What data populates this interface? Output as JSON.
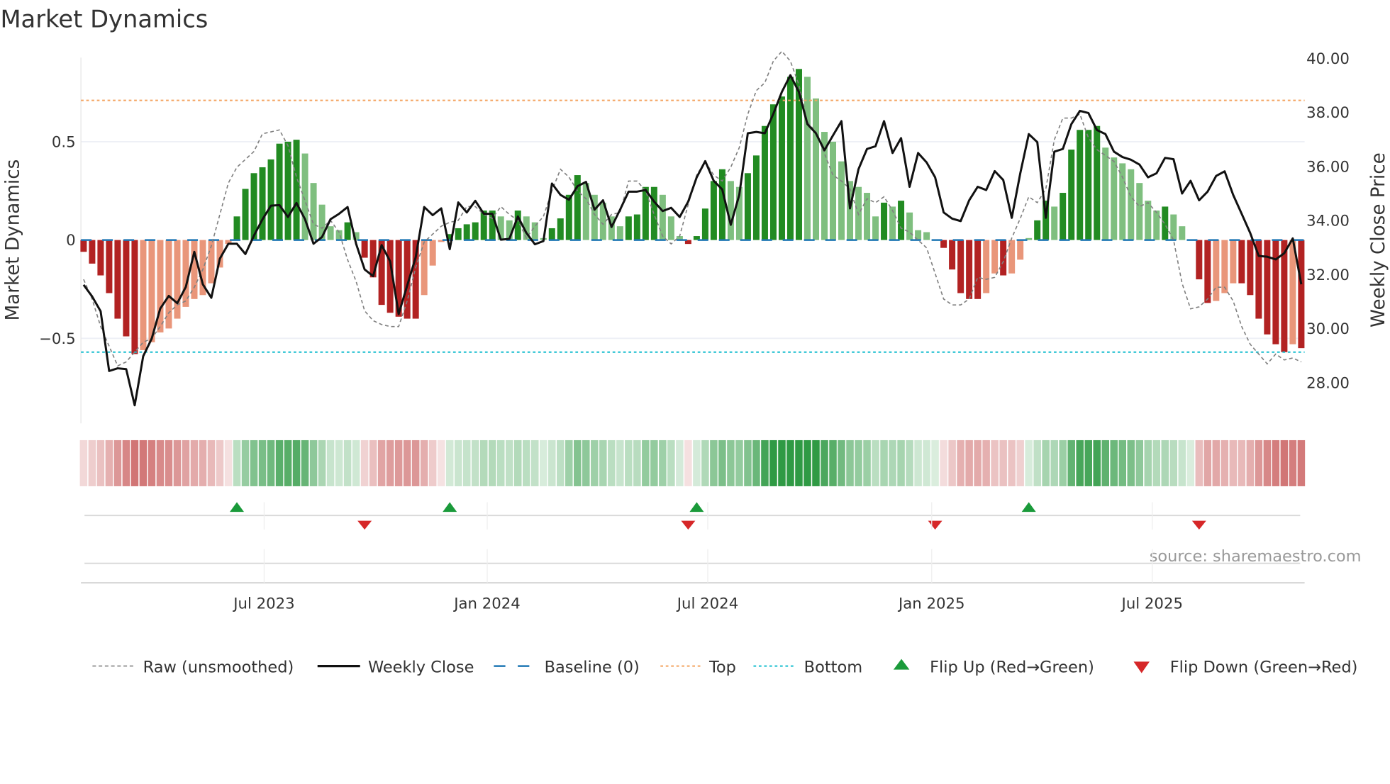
{
  "title": "Market Dynamics",
  "source": "source: sharemaestro.com",
  "colors": {
    "strong_red": "#b22222",
    "weak_red": "#e9967a",
    "strong_green": "#228b22",
    "weak_green": "#7fbf7f",
    "close": "#111111",
    "raw": "#808080",
    "baseline": "#1f77b4",
    "top": "#f4a460",
    "bottom": "#17becf",
    "flip_up": "#1a9a3a",
    "flip_down": "#d62728"
  },
  "chart_data": {
    "type": "bar",
    "title": "Market Dynamics",
    "ylabel": "Market Dynamics",
    "y2label": "Weekly Close Price",
    "ylim": [
      -0.95,
      0.93
    ],
    "y2lim": [
      26.5,
      40.2
    ],
    "yticks": [
      {
        "v": 0.5,
        "label": "0.5"
      },
      {
        "v": 0,
        "label": "0"
      },
      {
        "v": -0.5,
        "label": "−0.5"
      }
    ],
    "y2ticks": [
      {
        "v": 40,
        "label": "40.00"
      },
      {
        "v": 38,
        "label": "38.00"
      },
      {
        "v": 36,
        "label": "36.00"
      },
      {
        "v": 34,
        "label": "34.00"
      },
      {
        "v": 32,
        "label": "32.00"
      },
      {
        "v": 30,
        "label": "30.00"
      },
      {
        "v": 28,
        "label": "28.00"
      }
    ],
    "xticks": [
      {
        "week": 21.2,
        "label": "Jul 2023"
      },
      {
        "week": 47.4,
        "label": "Jan 2024"
      },
      {
        "week": 73.3,
        "label": "Jul 2024"
      },
      {
        "week": 99.6,
        "label": "Jan 2025"
      },
      {
        "week": 125.5,
        "label": "Jul 2025"
      }
    ],
    "top_level": 0.71,
    "bottom_level": -0.57,
    "baseline": 0,
    "momentum": [
      -0.06,
      -0.12,
      -0.18,
      -0.27,
      -0.4,
      -0.49,
      -0.58,
      -0.56,
      -0.52,
      -0.47,
      -0.45,
      -0.4,
      -0.34,
      -0.3,
      -0.28,
      -0.22,
      -0.14,
      -0.02,
      0.12,
      0.26,
      0.34,
      0.37,
      0.41,
      0.49,
      0.5,
      0.51,
      0.44,
      0.29,
      0.18,
      0.07,
      0.05,
      0.09,
      0.04,
      -0.09,
      -0.19,
      -0.33,
      -0.37,
      -0.39,
      -0.4,
      -0.4,
      -0.28,
      -0.13,
      -0.01,
      0.03,
      0.06,
      0.08,
      0.09,
      0.15,
      0.15,
      0.12,
      0.1,
      0.15,
      0.12,
      0.09,
      0.01,
      0.06,
      0.11,
      0.23,
      0.33,
      0.29,
      0.23,
      0.19,
      0.12,
      0.07,
      0.12,
      0.13,
      0.27,
      0.27,
      0.23,
      0.12,
      0.02,
      -0.02,
      0.02,
      0.16,
      0.3,
      0.36,
      0.3,
      0.27,
      0.34,
      0.43,
      0.58,
      0.69,
      0.73,
      0.83,
      0.87,
      0.83,
      0.72,
      0.55,
      0.5,
      0.4,
      0.3,
      0.27,
      0.24,
      0.12,
      0.19,
      0.17,
      0.2,
      0.14,
      0.05,
      0.04,
      0.0,
      -0.04,
      -0.15,
      -0.27,
      -0.3,
      -0.3,
      -0.27,
      -0.17,
      -0.18,
      -0.17,
      -0.1,
      0.01,
      0.1,
      0.2,
      0.17,
      0.24,
      0.46,
      0.56,
      0.56,
      0.58,
      0.47,
      0.42,
      0.39,
      0.36,
      0.29,
      0.2,
      0.15,
      0.17,
      0.13,
      0.07,
      0.0,
      -0.2,
      -0.32,
      -0.31,
      -0.27,
      -0.22,
      -0.22,
      -0.28,
      -0.4,
      -0.48,
      -0.53,
      -0.57,
      -0.53,
      -0.55
    ],
    "raw": [
      -0.2,
      -0.3,
      -0.44,
      -0.54,
      -0.64,
      -0.62,
      -0.57,
      -0.52,
      -0.5,
      -0.44,
      -0.37,
      -0.33,
      -0.31,
      -0.24,
      -0.15,
      -0.03,
      0.13,
      0.29,
      0.37,
      0.41,
      0.45,
      0.54,
      0.55,
      0.56,
      0.48,
      0.32,
      0.2,
      0.08,
      0.06,
      0.1,
      0.04,
      -0.1,
      -0.21,
      -0.36,
      -0.41,
      -0.43,
      -0.44,
      -0.44,
      -0.31,
      -0.14,
      -0.01,
      0.03,
      0.07,
      0.09,
      0.1,
      0.17,
      0.17,
      0.13,
      0.11,
      0.17,
      0.13,
      0.1,
      0.01,
      0.07,
      0.12,
      0.25,
      0.36,
      0.32,
      0.25,
      0.21,
      0.13,
      0.08,
      0.13,
      0.14,
      0.3,
      0.3,
      0.25,
      0.13,
      0.02,
      -0.02,
      0.02,
      0.18,
      0.33,
      0.4,
      0.33,
      0.3,
      0.37,
      0.47,
      0.64,
      0.76,
      0.8,
      0.91,
      0.96,
      0.91,
      0.79,
      0.6,
      0.55,
      0.44,
      0.33,
      0.3,
      0.26,
      0.13,
      0.21,
      0.19,
      0.22,
      0.15,
      0.06,
      0.04,
      0.0,
      -0.04,
      -0.17,
      -0.3,
      -0.33,
      -0.33,
      -0.3,
      -0.19,
      -0.2,
      -0.19,
      -0.11,
      0.01,
      0.11,
      0.22,
      0.19,
      0.26,
      0.51,
      0.62,
      0.62,
      0.64,
      0.52,
      0.46,
      0.43,
      0.4,
      0.32,
      0.22,
      0.17,
      0.19,
      0.14,
      0.08,
      0.0,
      -0.22,
      -0.35,
      -0.34,
      -0.3,
      -0.24,
      -0.24,
      -0.31,
      -0.44,
      -0.53,
      -0.58,
      -0.63,
      -0.58,
      -0.61,
      -0.6,
      -0.62
    ],
    "weekly_close": [
      31.62,
      31.19,
      30.64,
      28.43,
      28.53,
      28.5,
      27.16,
      28.98,
      29.63,
      30.74,
      31.21,
      30.94,
      31.54,
      32.84,
      31.64,
      31.14,
      32.59,
      33.14,
      33.14,
      32.76,
      33.44,
      34.04,
      34.55,
      34.57,
      34.13,
      34.65,
      34.05,
      33.14,
      33.39,
      34.05,
      34.25,
      34.5,
      33.14,
      32.19,
      31.94,
      33.09,
      32.49,
      30.54,
      31.59,
      32.64,
      34.5,
      34.2,
      34.45,
      32.94,
      34.67,
      34.3,
      34.73,
      34.25,
      34.25,
      33.29,
      33.32,
      34.15,
      33.54,
      33.12,
      33.24,
      35.37,
      34.95,
      34.77,
      35.27,
      35.43,
      34.4,
      34.75,
      33.76,
      34.4,
      35.07,
      35.07,
      35.13,
      34.7,
      34.35,
      34.47,
      34.13,
      34.7,
      35.6,
      36.2,
      35.47,
      35.15,
      33.84,
      34.95,
      37.23,
      37.28,
      37.23,
      37.95,
      38.76,
      39.38,
      38.76,
      37.57,
      37.23,
      36.6,
      37.15,
      37.68,
      34.45,
      35.9,
      36.65,
      36.75,
      37.68,
      36.5,
      37.05,
      35.25,
      36.5,
      36.15,
      35.6,
      34.3,
      34.07,
      33.98,
      34.75,
      35.25,
      35.13,
      35.83,
      35.5,
      34.1,
      35.75,
      37.2,
      36.9,
      34.1,
      36.55,
      36.65,
      37.57,
      38.06,
      37.98,
      37.35,
      37.2,
      36.55,
      36.35,
      36.25,
      36.07,
      35.6,
      35.75,
      36.32,
      36.27,
      35.0,
      35.47,
      34.75,
      35.07,
      35.65,
      35.82,
      34.95,
      34.25,
      33.54,
      32.69,
      32.66,
      32.56,
      32.79,
      33.34,
      31.64
    ],
    "flips": [
      {
        "week": 18,
        "dir": "up"
      },
      {
        "week": 33,
        "dir": "down"
      },
      {
        "week": 43,
        "dir": "up"
      },
      {
        "week": 71,
        "dir": "down"
      },
      {
        "week": 72,
        "dir": "up"
      },
      {
        "week": 100,
        "dir": "down"
      },
      {
        "week": 111,
        "dir": "up"
      },
      {
        "week": 131,
        "dir": "down"
      }
    ],
    "legend": {
      "placement": "bottom",
      "items": [
        {
          "key": "raw",
          "label": "Raw (unsmoothed)"
        },
        {
          "key": "close",
          "label": "Weekly Close"
        },
        {
          "key": "baseline",
          "label": "Baseline (0)"
        },
        {
          "key": "top",
          "label": "Top"
        },
        {
          "key": "bottom",
          "label": "Bottom"
        },
        {
          "key": "flip_up",
          "label": "Flip Up (Red→Green)"
        },
        {
          "key": "flip_down",
          "label": "Flip Down (Green→Red)"
        }
      ]
    }
  }
}
